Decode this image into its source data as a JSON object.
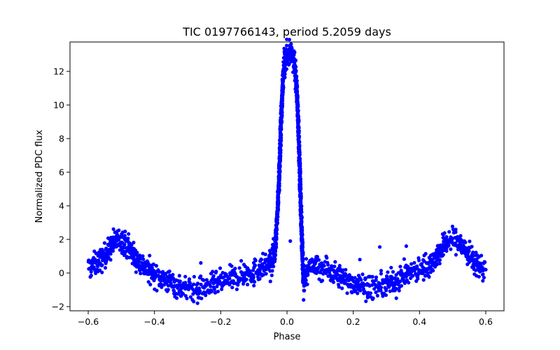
{
  "chart_data": {
    "type": "scatter",
    "title": "TIC 0197766143, period 5.2059 days",
    "xlabel": "Phase",
    "ylabel": "Normalized PDC flux",
    "xlim": [
      -0.655,
      0.655
    ],
    "ylim": [
      -2.25,
      13.75
    ],
    "xticks": [
      -0.6,
      -0.4,
      -0.2,
      0.0,
      0.2,
      0.4,
      0.6
    ],
    "xtick_labels": [
      "−0.6",
      "−0.4",
      "−0.2",
      "0.0",
      "0.2",
      "0.4",
      "0.6"
    ],
    "yticks": [
      -2,
      0,
      2,
      4,
      6,
      8,
      10,
      12
    ],
    "ytick_labels": [
      "−2",
      "0",
      "2",
      "4",
      "6",
      "8",
      "10",
      "12"
    ],
    "grid": false,
    "marker_color": "#0000ff",
    "series": [
      {
        "points_scatter": 0.35,
        "curve": [
          [
            -0.6,
            0.3
          ],
          [
            -0.58,
            0.5
          ],
          [
            -0.56,
            0.8
          ],
          [
            -0.54,
            1.3
          ],
          [
            -0.52,
            1.9
          ],
          [
            -0.5,
            2.0
          ],
          [
            -0.48,
            1.6
          ],
          [
            -0.46,
            1.0
          ],
          [
            -0.44,
            0.5
          ],
          [
            -0.42,
            0.2
          ],
          [
            -0.4,
            -0.1
          ],
          [
            -0.37,
            -0.4
          ],
          [
            -0.34,
            -0.7
          ],
          [
            -0.31,
            -0.9
          ],
          [
            -0.28,
            -1.0
          ],
          [
            -0.25,
            -0.9
          ],
          [
            -0.22,
            -0.7
          ],
          [
            -0.19,
            -0.5
          ],
          [
            -0.16,
            -0.3
          ],
          [
            -0.13,
            -0.1
          ],
          [
            -0.1,
            0.1
          ],
          [
            -0.08,
            0.3
          ],
          [
            -0.06,
            0.5
          ],
          [
            -0.045,
            0.7
          ],
          [
            -0.035,
            1.5
          ],
          [
            -0.025,
            5.0
          ],
          [
            -0.018,
            9.0
          ],
          [
            -0.012,
            11.5
          ],
          [
            -0.005,
            12.8
          ],
          [
            0.0,
            13.0
          ],
          [
            0.012,
            13.0
          ],
          [
            0.02,
            12.8
          ],
          [
            0.028,
            11.5
          ],
          [
            0.034,
            9.0
          ],
          [
            0.04,
            5.0
          ],
          [
            0.046,
            1.5
          ],
          [
            0.05,
            -0.6
          ],
          [
            0.06,
            0.2
          ],
          [
            0.08,
            0.4
          ],
          [
            0.1,
            0.3
          ],
          [
            0.13,
            0.1
          ],
          [
            0.16,
            -0.2
          ],
          [
            0.19,
            -0.5
          ],
          [
            0.22,
            -0.7
          ],
          [
            0.25,
            -0.8
          ],
          [
            0.28,
            -0.85
          ],
          [
            0.31,
            -0.6
          ],
          [
            0.34,
            -0.3
          ],
          [
            0.37,
            0.0
          ],
          [
            0.4,
            0.2
          ],
          [
            0.42,
            0.4
          ],
          [
            0.44,
            0.7
          ],
          [
            0.46,
            1.2
          ],
          [
            0.48,
            1.8
          ],
          [
            0.5,
            2.0
          ],
          [
            0.52,
            1.8
          ],
          [
            0.54,
            1.3
          ],
          [
            0.56,
            0.8
          ],
          [
            0.58,
            0.4
          ],
          [
            0.6,
            0.2
          ]
        ],
        "outliers": [
          [
            0.01,
            1.9
          ],
          [
            0.28,
            1.55
          ],
          [
            0.36,
            1.6
          ],
          [
            0.12,
            0.9
          ],
          [
            0.22,
            0.8
          ],
          [
            -0.26,
            0.6
          ],
          [
            -0.13,
            0.5
          ],
          [
            0.33,
            -1.5
          ],
          [
            -0.1,
            -0.75
          ],
          [
            0.05,
            -1.6
          ],
          [
            -0.05,
            -0.5
          ],
          [
            0.26,
            -1.5
          ],
          [
            -0.27,
            -1.8
          ],
          [
            0.45,
            1.2
          ]
        ]
      }
    ]
  }
}
